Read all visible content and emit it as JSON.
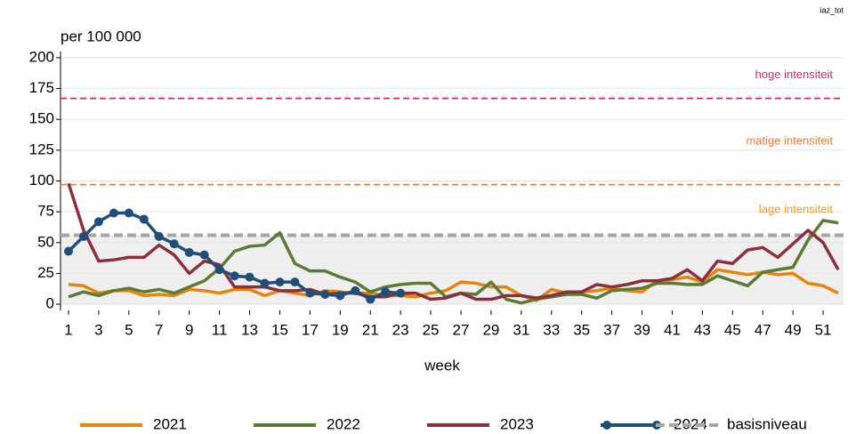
{
  "chart_data": {
    "type": "line",
    "corner_label": "iaz_tot",
    "y_axis_label": "per 100 000",
    "x_axis_label": "week",
    "x": [
      1,
      2,
      3,
      4,
      5,
      6,
      7,
      8,
      9,
      10,
      11,
      12,
      13,
      14,
      15,
      16,
      17,
      18,
      19,
      20,
      21,
      22,
      23,
      24,
      25,
      26,
      27,
      28,
      29,
      30,
      31,
      32,
      33,
      34,
      35,
      36,
      37,
      38,
      39,
      40,
      41,
      42,
      43,
      44,
      45,
      46,
      47,
      48,
      49,
      50,
      51,
      52
    ],
    "xlim": [
      1,
      52
    ],
    "xticks": [
      1,
      3,
      5,
      7,
      9,
      11,
      13,
      15,
      17,
      19,
      21,
      23,
      25,
      27,
      29,
      31,
      33,
      35,
      37,
      39,
      41,
      43,
      45,
      47,
      49,
      51
    ],
    "ylim": [
      -5,
      205
    ],
    "yticks": [
      0,
      25,
      50,
      75,
      100,
      125,
      150,
      175,
      200
    ],
    "grid": true,
    "legend": "bottom",
    "series": [
      {
        "name": "2021",
        "color": "#e8830c",
        "values": [
          16,
          15,
          9,
          11,
          11,
          7,
          8,
          7,
          12,
          11,
          9,
          12,
          12,
          7,
          11,
          9,
          7,
          11,
          10,
          9,
          9,
          7,
          7,
          6,
          9,
          11,
          18,
          17,
          14,
          14,
          7,
          3,
          12,
          9,
          10,
          11,
          13,
          11,
          10,
          19,
          20,
          22,
          18,
          28,
          26,
          24,
          26,
          24,
          25,
          17,
          15,
          9
        ]
      },
      {
        "name": "2022",
        "color": "#5b7b34",
        "values": [
          6,
          10,
          7,
          11,
          13,
          10,
          12,
          9,
          14,
          19,
          29,
          43,
          47,
          48,
          58,
          33,
          27,
          27,
          22,
          18,
          10,
          14,
          16,
          17,
          17,
          6,
          9,
          8,
          18,
          4,
          1,
          4,
          6,
          8,
          8,
          5,
          11,
          12,
          13,
          17,
          17,
          16,
          16,
          23,
          19,
          15,
          26,
          28,
          30,
          52,
          68,
          66
        ]
      },
      {
        "name": "2023",
        "color": "#8b2f3c",
        "values": [
          98,
          60,
          35,
          36,
          38,
          38,
          48,
          40,
          25,
          35,
          32,
          14,
          14,
          14,
          11,
          11,
          12,
          8,
          9,
          9,
          6,
          6,
          9,
          9,
          4,
          5,
          9,
          4,
          4,
          7,
          7,
          5,
          7,
          10,
          10,
          16,
          14,
          16,
          19,
          19,
          21,
          28,
          19,
          35,
          33,
          44,
          46,
          38,
          49,
          60,
          50,
          28
        ]
      },
      {
        "name": "2024",
        "color": "#1f4e79",
        "markers": true,
        "values": [
          43,
          55,
          67,
          74,
          74,
          69,
          55,
          49,
          42,
          40,
          28,
          23,
          22,
          17,
          18,
          18,
          9,
          8,
          7,
          11,
          4,
          10,
          9,
          null,
          null,
          null,
          null,
          null,
          null,
          null,
          null,
          null,
          null,
          null,
          null,
          null,
          null,
          null,
          null,
          null,
          null,
          null,
          null,
          null,
          null,
          null,
          null,
          null,
          null,
          null,
          null,
          null
        ]
      }
    ],
    "baseline": {
      "name": "basisniveau",
      "value": 56,
      "color": "#a6a6a6"
    },
    "intensity_levels": [
      {
        "label": "lage intensiteit",
        "color": "#f59a23"
      },
      {
        "label": "matige intensiteit",
        "value": 97,
        "color": "#ef7b2d"
      },
      {
        "label": "hoge intensiteit",
        "value": 167,
        "color": "#d6246e"
      }
    ]
  }
}
